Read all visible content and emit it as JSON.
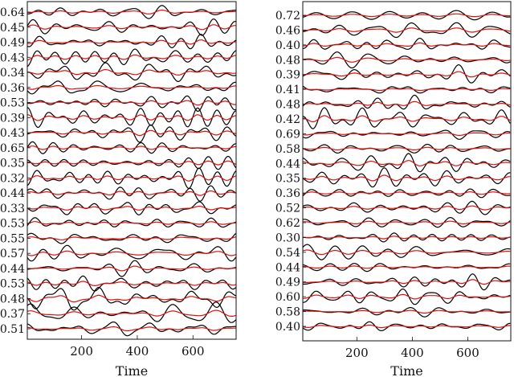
{
  "chart_data": [
    {
      "type": "line",
      "xlabel": "Time",
      "ylabel": "",
      "xlim": [
        5,
        755
      ],
      "xticks": [
        200,
        400,
        600
      ],
      "trace_labels": [
        "0.64",
        "0.45",
        "0.49",
        "0.43",
        "0.34",
        "0.36",
        "0.53",
        "0.39",
        "0.43",
        "0.65",
        "0.35",
        "0.32",
        "0.44",
        "0.33",
        "0.53",
        "0.55",
        "0.57",
        "0.44",
        "0.53",
        "0.48",
        "0.37",
        "0.51"
      ],
      "series": [
        {
          "color": "#000000"
        },
        {
          "color": "#e01010"
        }
      ],
      "grid": false
    },
    {
      "type": "line",
      "xlabel": "Time",
      "ylabel": "",
      "xlim": [
        5,
        755
      ],
      "xticks": [
        200,
        400,
        600
      ],
      "trace_labels": [
        "0.72",
        "0.46",
        "0.40",
        "0.48",
        "0.39",
        "0.41",
        "0.48",
        "0.42",
        "0.69",
        "0.58",
        "0.44",
        "0.35",
        "0.36",
        "0.52",
        "0.62",
        "0.30",
        "0.54",
        "0.44",
        "0.49",
        "0.60",
        "0.58",
        "0.40"
      ],
      "series": [
        {
          "color": "#000000"
        },
        {
          "color": "#e01010"
        }
      ],
      "grid": false
    }
  ]
}
